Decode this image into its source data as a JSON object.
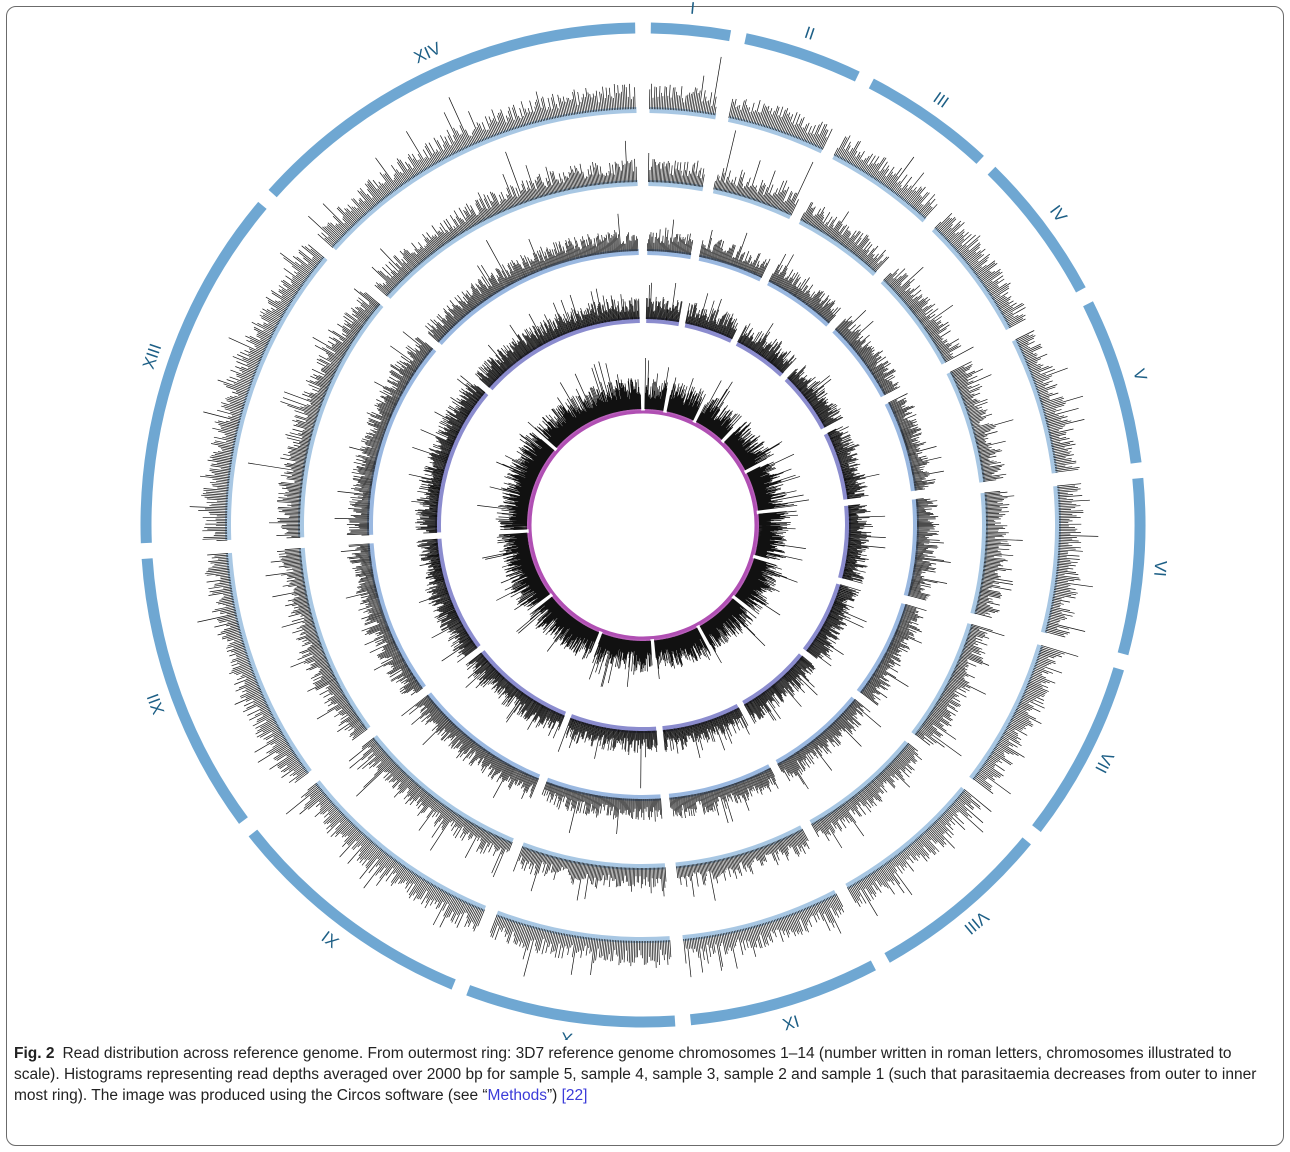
{
  "figure": {
    "chromosomes": [
      {
        "label": "I",
        "relative_length": 0.64
      },
      {
        "label": "II",
        "relative_length": 0.95
      },
      {
        "label": "III",
        "relative_length": 1.07
      },
      {
        "label": "IV",
        "relative_length": 1.2
      },
      {
        "label": "V",
        "relative_length": 1.34
      },
      {
        "label": "VI",
        "relative_length": 1.42
      },
      {
        "label": "VII",
        "relative_length": 1.45
      },
      {
        "label": "VIII",
        "relative_length": 1.47
      },
      {
        "label": "IX",
        "relative_length": 1.54
      },
      {
        "label": "X",
        "relative_length": 1.69
      },
      {
        "label": "XI",
        "relative_length": 2.04
      },
      {
        "label": "XII",
        "relative_length": 2.27
      },
      {
        "label": "XIII",
        "relative_length": 2.93
      },
      {
        "label": "XIV",
        "relative_length": 3.29
      }
    ],
    "ring_colors": {
      "chromosome_band": "#6fa7d2",
      "chromosome_label": "#1d5f86",
      "histogram_line": "#111111",
      "histogram_fills": [
        "#9fc1e0",
        "#9fc1e0",
        "#8fb0dd",
        "#7e7fc9",
        "#b04fb3"
      ]
    }
  },
  "caption": {
    "label": "Fig. 2",
    "text_before_link": "Read distribution across reference genome. From outermost ring: 3D7 reference genome chromosomes 1–14 (number written in roman letters, chromosomes illustrated to scale). Histograms representing read depths averaged over 2000 bp for sample 5, sample 4, sample 3, sample 2 and sample 1 (such that parasitaemia decreases from outer to inner most ring). The image was produced using the Circos software (see “",
    "link_text": "Methods",
    "text_after_link": "”) ",
    "reference": "[22]"
  }
}
